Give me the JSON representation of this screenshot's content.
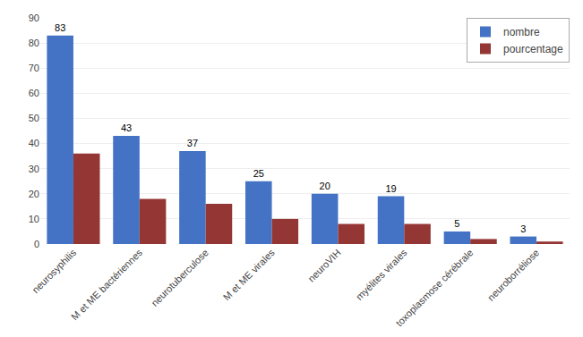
{
  "chart_data": {
    "type": "bar",
    "categories": [
      "neurosyphilis",
      "M et ME bactériennes",
      "neurotuberculose",
      "M et ME virales",
      "neuroVIH",
      "myélites virales",
      "toxoplasmose cérébrale",
      "neuroborréliose"
    ],
    "series": [
      {
        "name": "nombre",
        "color": "#4472C4",
        "values": [
          83,
          43,
          37,
          25,
          20,
          19,
          5,
          3
        ],
        "data_labels": true
      },
      {
        "name": "pourcentage",
        "color": "#943634",
        "values": [
          36,
          18,
          16,
          10,
          8,
          8,
          2,
          1
        ],
        "data_labels": false
      }
    ],
    "ylim": [
      0,
      90
    ],
    "yticks": [
      0,
      10,
      20,
      30,
      40,
      50,
      60,
      70,
      80,
      90
    ],
    "grid": true,
    "legend": "upper right"
  }
}
